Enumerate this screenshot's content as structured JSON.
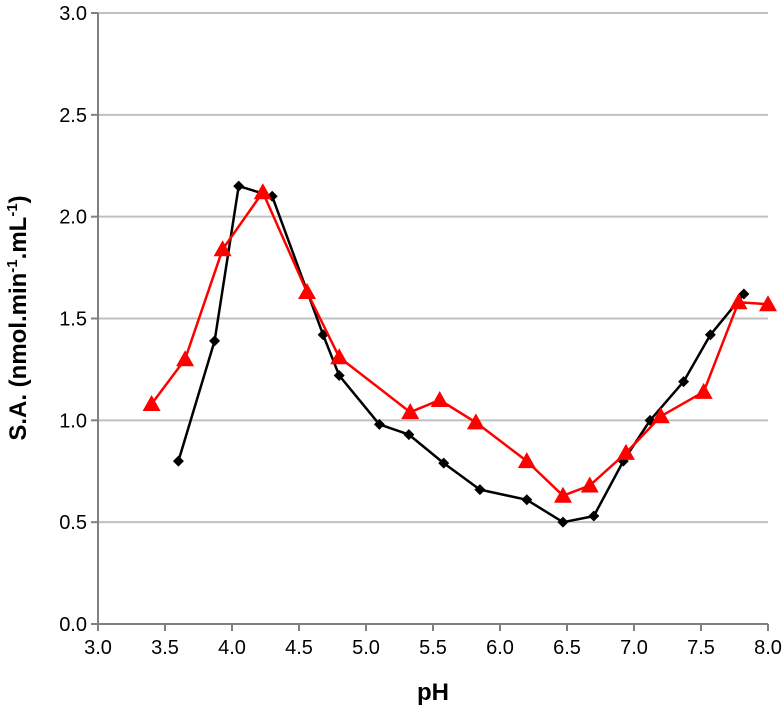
{
  "chart_data": {
    "type": "line",
    "title": "",
    "xlabel": "pH",
    "ylabel": "S.A. (nmol.min-1.mL-1)",
    "ylabel_parts": {
      "base": "S.A. (nmol.min",
      "sup1": "-1",
      "mid": ".mL",
      "sup2": "-1",
      "end": ")"
    },
    "xlim": [
      3.0,
      8.0
    ],
    "ylim": [
      0.0,
      3.0
    ],
    "xticks": [
      "3.0",
      "3.5",
      "4.0",
      "4.5",
      "5.0",
      "5.5",
      "6.0",
      "6.5",
      "7.0",
      "7.5",
      "8.0"
    ],
    "yticks": [
      "0.0",
      "0.5",
      "1.0",
      "1.5",
      "2.0",
      "2.5",
      "3.0"
    ],
    "grid": "horizontal",
    "legend": "none",
    "series": [
      {
        "color": "#000000",
        "marker": "diamond",
        "x": [
          3.6,
          3.87,
          4.05,
          4.3,
          4.68,
          4.8,
          5.1,
          5.32,
          5.58,
          5.85,
          6.2,
          6.47,
          6.7,
          6.92,
          7.12,
          7.37,
          7.57,
          7.82
        ],
        "y": [
          0.8,
          1.39,
          2.15,
          2.1,
          1.42,
          1.22,
          0.98,
          0.93,
          0.79,
          0.66,
          0.61,
          0.5,
          0.53,
          0.8,
          1.0,
          1.19,
          1.42,
          1.62
        ]
      },
      {
        "color": "#ff0000",
        "marker": "triangle",
        "x": [
          3.4,
          3.65,
          3.93,
          4.23,
          4.56,
          4.8,
          5.33,
          5.55,
          5.82,
          6.2,
          6.47,
          6.67,
          6.94,
          7.2,
          7.52,
          7.78,
          8.0
        ],
        "y": [
          1.08,
          1.3,
          1.84,
          2.12,
          1.63,
          1.31,
          1.04,
          1.1,
          0.99,
          0.8,
          0.63,
          0.68,
          0.84,
          1.02,
          1.14,
          1.58,
          1.57
        ]
      }
    ]
  }
}
